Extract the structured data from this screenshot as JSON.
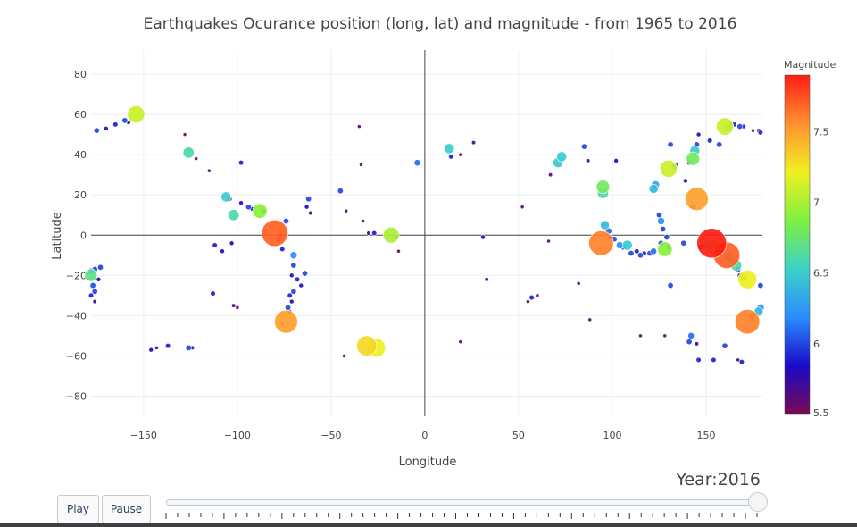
{
  "chart_data": {
    "type": "scatter",
    "title": "Earthquakes Ocurance position (long, lat) and magnitude - from 1965 to 2016",
    "xlabel": "Longitude",
    "ylabel": "Latitude",
    "xlim": [
      -178,
      180
    ],
    "ylim": [
      -90,
      92
    ],
    "xticks": [
      -150,
      -100,
      -50,
      0,
      50,
      100,
      150
    ],
    "yticks": [
      -80,
      -60,
      -40,
      -20,
      0,
      20,
      40,
      60,
      80
    ],
    "xtick_labels": [
      "−150",
      "−100",
      "−50",
      "0",
      "50",
      "100",
      "150"
    ],
    "ytick_labels": [
      "−80",
      "−60",
      "−40",
      "−20",
      "0",
      "20",
      "40",
      "60",
      "80"
    ],
    "grid": true,
    "colorbar": {
      "title": "Magnitude",
      "range": [
        5.5,
        7.9
      ],
      "ticks": [
        5.5,
        6,
        6.5,
        7,
        7.5
      ],
      "colorscale": [
        "#7a0a50",
        "#1a0ac8",
        "#2a8cff",
        "#3cd2c8",
        "#7ff040",
        "#f0f020",
        "#ff9030",
        "#ff1e14"
      ]
    },
    "points": [
      [
        -154,
        60,
        7.1
      ],
      [
        -175,
        52,
        6.0
      ],
      [
        -170,
        53,
        5.8
      ],
      [
        -165,
        55,
        5.9
      ],
      [
        -160,
        57,
        6.0
      ],
      [
        -158,
        56,
        5.7
      ],
      [
        -128,
        50,
        5.5
      ],
      [
        -126,
        41,
        6.6
      ],
      [
        -122,
        38,
        5.6
      ],
      [
        -115,
        32,
        5.6
      ],
      [
        -98,
        36,
        5.9
      ],
      [
        -106,
        19,
        6.5
      ],
      [
        -104,
        18,
        5.8
      ],
      [
        -102,
        10,
        6.6
      ],
      [
        -98,
        16,
        5.8
      ],
      [
        -94,
        14,
        6.0
      ],
      [
        -92,
        13,
        5.8
      ],
      [
        -88,
        12,
        6.9
      ],
      [
        -86,
        12,
        5.8
      ],
      [
        -80,
        1,
        7.7
      ],
      [
        -78,
        -2,
        6.0
      ],
      [
        -76,
        -7,
        5.9
      ],
      [
        -77,
        0,
        5.7
      ],
      [
        -74,
        7,
        6.0
      ],
      [
        -70,
        -10,
        6.2
      ],
      [
        -70,
        -15,
        6.0
      ],
      [
        -71,
        -20,
        5.8
      ],
      [
        -68,
        -22,
        5.9
      ],
      [
        -66,
        -25,
        5.8
      ],
      [
        -70,
        -28,
        6.0
      ],
      [
        -72,
        -30,
        5.9
      ],
      [
        -71,
        -33,
        5.8
      ],
      [
        -73,
        -36,
        6.0
      ],
      [
        -72,
        -38,
        5.7
      ],
      [
        -74,
        -43,
        7.5
      ],
      [
        -76,
        -44,
        5.6
      ],
      [
        -64,
        -19,
        6.0
      ],
      [
        -63,
        14,
        5.8
      ],
      [
        -62,
        18,
        6.0
      ],
      [
        -61,
        11,
        5.7
      ],
      [
        -45,
        22,
        6.0
      ],
      [
        -42,
        12,
        5.6
      ],
      [
        -35,
        54,
        5.6
      ],
      [
        -34,
        35,
        5.6
      ],
      [
        -33,
        7,
        5.6
      ],
      [
        -30,
        1,
        5.7
      ],
      [
        -27,
        1,
        5.9
      ],
      [
        -18,
        0,
        7.0
      ],
      [
        -15,
        -1,
        5.8
      ],
      [
        -14,
        -8,
        5.6
      ],
      [
        -31,
        -55,
        7.3
      ],
      [
        -28,
        -58,
        5.8
      ],
      [
        -26,
        -56,
        7.2
      ],
      [
        -43,
        -60,
        5.6
      ],
      [
        -176,
        -17,
        6.0
      ],
      [
        -178,
        -18,
        6.1
      ],
      [
        -178,
        -20,
        6.7
      ],
      [
        -177,
        -25,
        6.0
      ],
      [
        -178,
        -30,
        5.9
      ],
      [
        -176,
        -33,
        5.7
      ],
      [
        -173,
        -16,
        6.0
      ],
      [
        -174,
        -22,
        5.8
      ],
      [
        -176,
        -28,
        6.0
      ],
      [
        -113,
        -29,
        5.9
      ],
      [
        -112,
        -5,
        5.9
      ],
      [
        -103,
        -4,
        5.8
      ],
      [
        -100,
        -36,
        5.6
      ],
      [
        -102,
        -35,
        5.7
      ],
      [
        -146,
        -57,
        5.8
      ],
      [
        -143,
        -56,
        5.6
      ],
      [
        -137,
        -55,
        5.9
      ],
      [
        -126,
        -56,
        6.0
      ],
      [
        -124,
        -56,
        5.7
      ],
      [
        -108,
        -8,
        5.8
      ],
      [
        -4,
        36,
        6.1
      ],
      [
        13,
        43,
        6.5
      ],
      [
        14,
        39,
        5.9
      ],
      [
        19,
        40,
        5.6
      ],
      [
        26,
        46,
        5.7
      ],
      [
        31,
        -1,
        5.8
      ],
      [
        33,
        -22,
        5.7
      ],
      [
        19,
        -53,
        5.6
      ],
      [
        52,
        14,
        5.6
      ],
      [
        55,
        -33,
        5.6
      ],
      [
        57,
        -31,
        5.9
      ],
      [
        60,
        -30,
        5.6
      ],
      [
        66,
        -3,
        5.6
      ],
      [
        67,
        30,
        5.7
      ],
      [
        71,
        36,
        6.5
      ],
      [
        73,
        39,
        6.5
      ],
      [
        82,
        -24,
        5.6
      ],
      [
        85,
        44,
        6.0
      ],
      [
        87,
        37,
        5.7
      ],
      [
        88,
        -42,
        5.6
      ],
      [
        94,
        -4,
        7.6
      ],
      [
        95,
        24,
        6.8
      ],
      [
        95,
        21,
        6.6
      ],
      [
        96,
        5,
        6.4
      ],
      [
        98,
        2,
        6.1
      ],
      [
        99,
        -1,
        5.9
      ],
      [
        101,
        -2,
        6.0
      ],
      [
        102,
        37,
        5.8
      ],
      [
        104,
        -5,
        6.2
      ],
      [
        106,
        -6,
        6.0
      ],
      [
        108,
        -5,
        6.5
      ],
      [
        110,
        -9,
        6.0
      ],
      [
        113,
        -8,
        5.9
      ],
      [
        115,
        -10,
        6.0
      ],
      [
        117,
        -9,
        5.8
      ],
      [
        115,
        -50,
        5.6
      ],
      [
        120,
        -9,
        6.0
      ],
      [
        122,
        -8,
        6.1
      ],
      [
        122,
        23,
        6.4
      ],
      [
        123,
        25,
        6.3
      ],
      [
        125,
        10,
        6.0
      ],
      [
        126,
        7,
        6.2
      ],
      [
        127,
        3,
        6.0
      ],
      [
        126,
        -4,
        6.0
      ],
      [
        128,
        -7,
        6.9
      ],
      [
        130,
        -6,
        6.0
      ],
      [
        129,
        -1,
        6.0
      ],
      [
        131,
        45,
        6.0
      ],
      [
        130,
        33,
        7.1
      ],
      [
        133,
        34,
        6.0
      ],
      [
        134,
        35,
        5.9
      ],
      [
        131,
        -25,
        6.0
      ],
      [
        128,
        -50,
        5.6
      ],
      [
        138,
        -4,
        6.0
      ],
      [
        139,
        27,
        5.8
      ],
      [
        141,
        36,
        5.9
      ],
      [
        143,
        38,
        6.8
      ],
      [
        144,
        42,
        6.5
      ],
      [
        145,
        45,
        6.0
      ],
      [
        146,
        50,
        5.8
      ],
      [
        143,
        14,
        6.0
      ],
      [
        142,
        -50,
        6.1
      ],
      [
        141,
        -53,
        6.0
      ],
      [
        145,
        -54,
        5.7
      ],
      [
        146,
        -62,
        5.9
      ],
      [
        145,
        18,
        7.5
      ],
      [
        147,
        -6,
        6.0
      ],
      [
        150,
        -5,
        6.1
      ],
      [
        152,
        -5,
        6.5
      ],
      [
        153,
        -4,
        7.9
      ],
      [
        154,
        -6,
        6.8
      ],
      [
        156,
        -7,
        6.0
      ],
      [
        157,
        45,
        6.0
      ],
      [
        160,
        54,
        7.1
      ],
      [
        162,
        54,
        6.5
      ],
      [
        165,
        55,
        5.9
      ],
      [
        168,
        54,
        6.0
      ],
      [
        170,
        54,
        5.8
      ],
      [
        152,
        47,
        5.9
      ],
      [
        154,
        -62,
        5.9
      ],
      [
        160,
        -55,
        6.0
      ],
      [
        161,
        -10,
        7.7
      ],
      [
        162,
        -11,
        6.5
      ],
      [
        166,
        -15,
        6.6
      ],
      [
        167,
        -17,
        6.0
      ],
      [
        168,
        -20,
        5.9
      ],
      [
        170,
        -21,
        6.1
      ],
      [
        172,
        -22,
        7.2
      ],
      [
        172,
        -43,
        7.6
      ],
      [
        174,
        -41,
        6.0
      ],
      [
        176,
        -39,
        5.8
      ],
      [
        178,
        -38,
        6.4
      ],
      [
        179,
        -36,
        6.2
      ],
      [
        179,
        -25,
        6.0
      ],
      [
        167,
        -62,
        5.6
      ],
      [
        169,
        -63,
        5.9
      ],
      [
        175,
        52,
        5.6
      ],
      [
        178,
        52,
        5.7
      ],
      [
        179,
        51,
        5.9
      ]
    ]
  },
  "slider": {
    "year_label": "Year:",
    "year_value": "2016",
    "year_min": 1965,
    "year_max": 2016,
    "value": 2016
  },
  "controls": {
    "play_label": "Play",
    "pause_label": "Pause"
  }
}
